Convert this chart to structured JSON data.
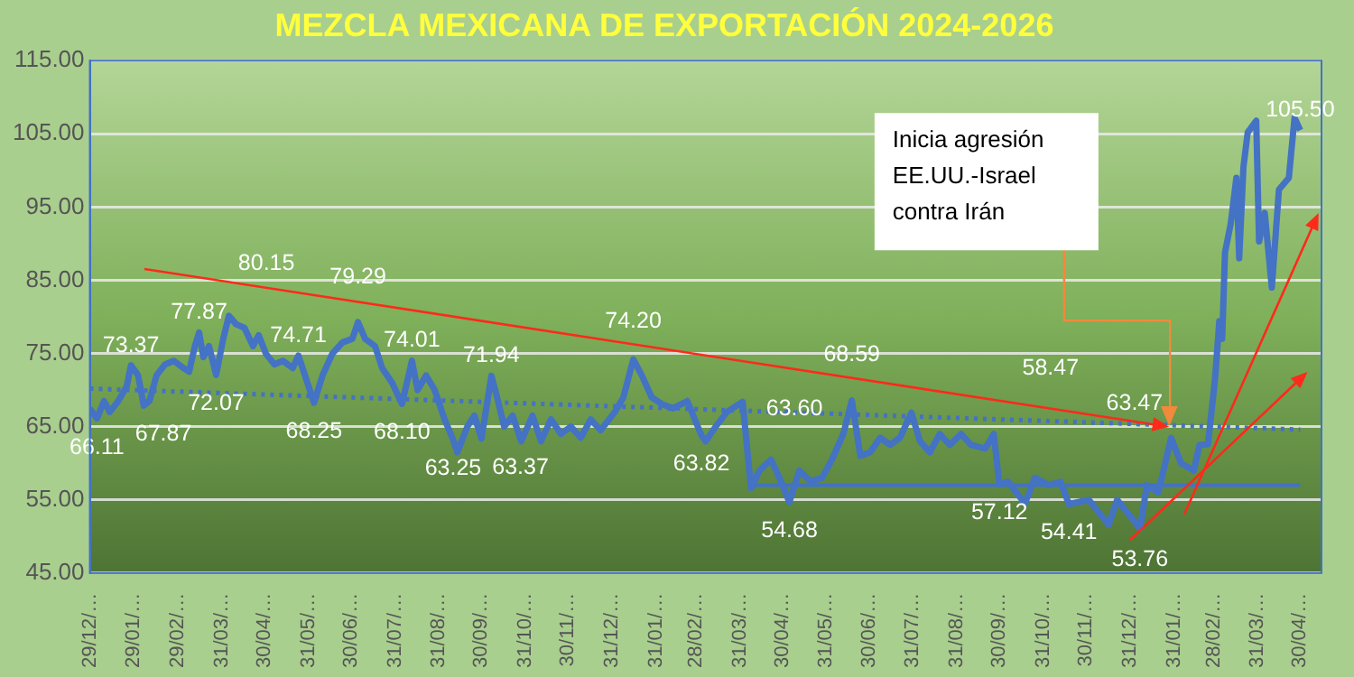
{
  "chart_data": {
    "type": "line",
    "title": "MEZCLA MEXICANA DE EXPORTACIÓN 2024-2026",
    "xlim": [
      "2023-12-29",
      "2026-05-15"
    ],
    "xticks": [
      {
        "value": "2023-12-29",
        "label": "29/12/…"
      },
      {
        "value": "2024-01-29",
        "label": "29/01/…"
      },
      {
        "value": "2024-02-29",
        "label": "29/02/…"
      },
      {
        "value": "2024-03-31",
        "label": "31/03/…"
      },
      {
        "value": "2024-04-30",
        "label": "30/04/…"
      },
      {
        "value": "2024-05-31",
        "label": "31/05/…"
      },
      {
        "value": "2024-06-30",
        "label": "30/06/…"
      },
      {
        "value": "2024-07-31",
        "label": "31/07/…"
      },
      {
        "value": "2024-08-31",
        "label": "31/08/…"
      },
      {
        "value": "2024-09-30",
        "label": "30/09/…"
      },
      {
        "value": "2024-10-31",
        "label": "31/10/…"
      },
      {
        "value": "2024-11-30",
        "label": "30/11/…"
      },
      {
        "value": "2024-12-31",
        "label": "31/12/…"
      },
      {
        "value": "2025-01-31",
        "label": "31/01/…"
      },
      {
        "value": "2025-02-28",
        "label": "28/02/…"
      },
      {
        "value": "2025-03-31",
        "label": "31/03/…"
      },
      {
        "value": "2025-04-30",
        "label": "30/04/…"
      },
      {
        "value": "2025-05-31",
        "label": "31/05/…"
      },
      {
        "value": "2025-06-30",
        "label": "30/06/…"
      },
      {
        "value": "2025-07-31",
        "label": "31/07/…"
      },
      {
        "value": "2025-08-31",
        "label": "31/08/…"
      },
      {
        "value": "2025-09-30",
        "label": "30/09/…"
      },
      {
        "value": "2025-10-31",
        "label": "31/10/…"
      },
      {
        "value": "2025-11-30",
        "label": "30/11/…"
      },
      {
        "value": "2025-12-31",
        "label": "31/12/…"
      },
      {
        "value": "2026-01-31",
        "label": "31/01/…"
      },
      {
        "value": "2026-02-28",
        "label": "28/02/…"
      },
      {
        "value": "2026-03-31",
        "label": "31/03/…"
      },
      {
        "value": "2026-04-30",
        "label": "30/04/…"
      }
    ],
    "ylim": [
      45,
      115
    ],
    "yticks": [
      {
        "value": 45,
        "label": "45.00"
      },
      {
        "value": 55,
        "label": "55.00"
      },
      {
        "value": 65,
        "label": "65.00"
      },
      {
        "value": 75,
        "label": "75.00"
      },
      {
        "value": 85,
        "label": "85.00"
      },
      {
        "value": 95,
        "label": "95.00"
      },
      {
        "value": 105,
        "label": "105.00"
      },
      {
        "value": 115,
        "label": "115.00"
      }
    ],
    "grid": "y",
    "marker": "none",
    "series": [
      {
        "color": "#4472c4",
        "x": [
          "2023-12-29",
          "2024-01-03",
          "2024-01-08",
          "2024-01-12",
          "2024-01-18",
          "2024-01-24",
          "2024-01-27",
          "2024-02-01",
          "2024-02-05",
          "2024-02-09",
          "2024-02-14",
          "2024-02-20",
          "2024-02-26",
          "2024-03-04",
          "2024-03-08",
          "2024-03-12",
          "2024-03-15",
          "2024-03-18",
          "2024-03-22",
          "2024-03-27",
          "2024-04-01",
          "2024-04-05",
          "2024-04-10",
          "2024-04-16",
          "2024-04-22",
          "2024-04-26",
          "2024-05-01",
          "2024-05-07",
          "2024-05-13",
          "2024-05-20",
          "2024-05-24",
          "2024-06-04",
          "2024-06-10",
          "2024-06-17",
          "2024-06-24",
          "2024-07-01",
          "2024-07-05",
          "2024-07-10",
          "2024-07-17",
          "2024-07-22",
          "2024-07-29",
          "2024-08-05",
          "2024-08-12",
          "2024-08-16",
          "2024-08-22",
          "2024-08-28",
          "2024-09-04",
          "2024-09-10",
          "2024-09-13",
          "2024-09-20",
          "2024-09-25",
          "2024-09-30",
          "2024-10-07",
          "2024-10-11",
          "2024-10-16",
          "2024-10-22",
          "2024-10-28",
          "2024-11-05",
          "2024-11-11",
          "2024-11-18",
          "2024-11-25",
          "2024-12-02",
          "2024-12-09",
          "2024-12-16",
          "2024-12-23",
          "2025-01-02",
          "2025-01-08",
          "2025-01-15",
          "2025-01-21",
          "2025-01-28",
          "2025-02-05",
          "2025-02-12",
          "2025-02-22",
          "2025-03-04",
          "2025-03-07",
          "2025-03-14",
          "2025-03-22",
          "2025-04-02",
          "2025-04-08",
          "2025-04-14",
          "2025-04-22",
          "2025-04-28",
          "2025-05-05",
          "2025-05-12",
          "2025-05-20",
          "2025-05-28",
          "2025-06-04",
          "2025-06-12",
          "2025-06-18",
          "2025-06-24",
          "2025-07-01",
          "2025-07-08",
          "2025-07-15",
          "2025-07-22",
          "2025-07-30",
          "2025-08-05",
          "2025-08-12",
          "2025-08-19",
          "2025-08-26",
          "2025-09-03",
          "2025-09-10",
          "2025-09-20",
          "2025-09-26",
          "2025-09-30",
          "2025-10-06",
          "2025-10-18",
          "2025-10-25",
          "2025-11-04",
          "2025-11-12",
          "2025-11-18",
          "2025-12-02",
          "2025-12-16",
          "2025-12-22",
          "2026-01-07",
          "2026-01-12",
          "2026-01-20",
          "2026-01-29",
          "2026-02-05",
          "2026-02-14",
          "2026-02-18",
          "2026-02-24",
          "2026-03-01",
          "2026-03-04",
          "2026-03-06",
          "2026-03-08",
          "2026-03-12",
          "2026-03-16",
          "2026-03-18",
          "2026-03-21",
          "2026-03-24",
          "2026-03-30",
          "2026-04-01",
          "2026-04-05",
          "2026-04-10",
          "2026-04-15",
          "2026-04-22",
          "2026-04-26",
          "2026-04-30"
        ],
        "values": [
          67.5,
          66.11,
          68.5,
          67,
          68.5,
          70.5,
          73.37,
          72,
          67.87,
          68.5,
          72,
          73.5,
          74,
          73,
          72.5,
          76,
          77.87,
          74.5,
          76,
          72.07,
          77,
          80.15,
          79,
          78.5,
          76,
          77.5,
          75,
          73.5,
          74,
          73,
          74.71,
          68.25,
          72,
          75,
          76.5,
          77,
          79.29,
          77,
          76,
          73,
          71,
          68.1,
          74.01,
          70,
          72,
          70,
          66,
          63.25,
          61.5,
          65,
          66.5,
          63.37,
          71.94,
          69,
          65,
          66.5,
          63,
          66.5,
          63,
          66,
          64,
          65,
          63.5,
          66,
          64.5,
          67,
          69,
          74.2,
          72,
          69,
          68,
          67.5,
          68.5,
          63.82,
          63,
          65,
          67,
          68.4,
          56.6,
          59,
          60.5,
          58,
          54.68,
          59,
          57.5,
          58,
          60.5,
          64,
          68.59,
          61,
          61.5,
          63.5,
          62.5,
          63.5,
          66.9,
          63,
          61.5,
          64,
          62.5,
          64,
          62.5,
          62,
          64,
          57.12,
          57.5,
          54.5,
          58,
          57,
          57.5,
          54.41,
          55,
          51.6,
          55,
          51.1,
          57,
          56,
          63.47,
          60,
          59,
          62.5,
          62.6,
          71.6,
          79.4,
          77,
          88.8,
          92.7,
          99,
          88,
          100.5,
          105.2,
          106.8,
          90.3,
          94.2,
          84,
          97.4,
          99,
          107.2,
          105.5
        ]
      },
      {
        "type": "line",
        "color": "#4472c4",
        "line_style": "dotted",
        "x": [
          "2023-12-29",
          "2026-04-30"
        ],
        "values": [
          70.2,
          64.6
        ]
      },
      {
        "type": "line",
        "color": "#4472c4",
        "x": [
          "2025-04-10",
          "2026-04-30"
        ],
        "values": [
          57,
          57
        ]
      }
    ],
    "annotations": [
      {
        "text": "73.37",
        "x": "2024-01-27",
        "y": 73.37
      },
      {
        "text": "66.11",
        "x": "2024-01-03",
        "y": 66.11
      },
      {
        "text": "67.87",
        "x": "2024-02-05",
        "y": 67.87
      },
      {
        "text": "77.87",
        "x": "2024-03-15",
        "y": 77.87
      },
      {
        "text": "72.07",
        "x": "2024-03-27",
        "y": 72.07
      },
      {
        "text": "80.15",
        "x": "2024-04-05",
        "y": 80.15
      },
      {
        "text": "74.71",
        "x": "2024-05-24",
        "y": 74.71
      },
      {
        "text": "68.25",
        "x": "2024-06-04",
        "y": 68.25
      },
      {
        "text": "79.29",
        "x": "2024-07-05",
        "y": 79.29
      },
      {
        "text": "68.10",
        "x": "2024-08-05",
        "y": 68.1
      },
      {
        "text": "74.01",
        "x": "2024-08-12",
        "y": 74.01
      },
      {
        "text": "63.25",
        "x": "2024-09-10",
        "y": 63.25
      },
      {
        "text": "63.37",
        "x": "2024-09-30",
        "y": 63.37
      },
      {
        "text": "71.94",
        "x": "2024-10-07",
        "y": 71.94
      },
      {
        "text": "74.20",
        "x": "2025-01-15",
        "y": 74.2
      },
      {
        "text": "63.82",
        "x": "2025-03-04",
        "y": 63.82
      },
      "63.60",
      {
        "text": "54.68",
        "x": "2025-05-05",
        "y": 54.68
      },
      {
        "text": "68.59",
        "x": "2025-06-18",
        "y": 68.59
      },
      {
        "text": "57.12",
        "x": "2025-09-30",
        "y": 57.12
      },
      "58.47",
      {
        "text": "54.41",
        "x": "2025-11-18",
        "y": 54.41
      },
      {
        "text": "53.76",
        "x": "2026-01-07",
        "y": 53.76
      },
      {
        "text": "63.47",
        "x": "2026-01-29",
        "y": 63.47
      },
      {
        "text": "105.50",
        "x": "2026-04-30",
        "y": 105.5
      },
      "Inicia agresión EE.UU.-Israel contra Irán"
    ]
  }
}
